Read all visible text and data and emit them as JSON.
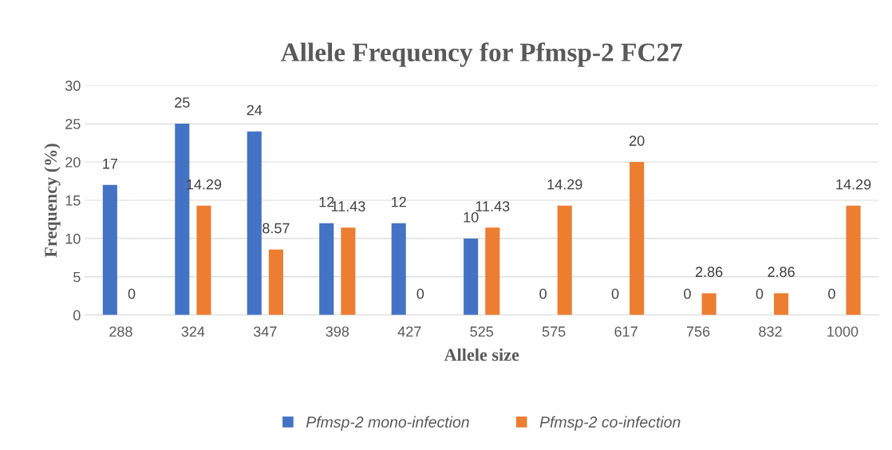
{
  "chart_data": {
    "type": "bar",
    "title": "Allele Frequency for Pfmsp-2 FC27",
    "xlabel": "Allele size",
    "ylabel": "Frequency (%)",
    "categories": [
      "288",
      "324",
      "347",
      "398",
      "427",
      "525",
      "575",
      "617",
      "756",
      "832",
      "1000"
    ],
    "series": [
      {
        "name": "Pfmsp-2 mono-infection",
        "color": "#4472c4",
        "values": [
          17,
          25,
          24,
          12,
          12,
          10,
          0,
          0,
          0,
          0,
          0
        ]
      },
      {
        "name": "Pfmsp-2 co-infection",
        "color": "#ed7d31",
        "values": [
          0,
          14.29,
          8.57,
          11.43,
          0,
          11.43,
          14.29,
          20,
          2.86,
          2.86,
          14.29
        ]
      }
    ],
    "ylim": [
      0,
      30
    ],
    "yticks": [
      0,
      5,
      10,
      15,
      20,
      25,
      30
    ],
    "grid": "y",
    "legend": "bottom",
    "data_labels": true
  }
}
